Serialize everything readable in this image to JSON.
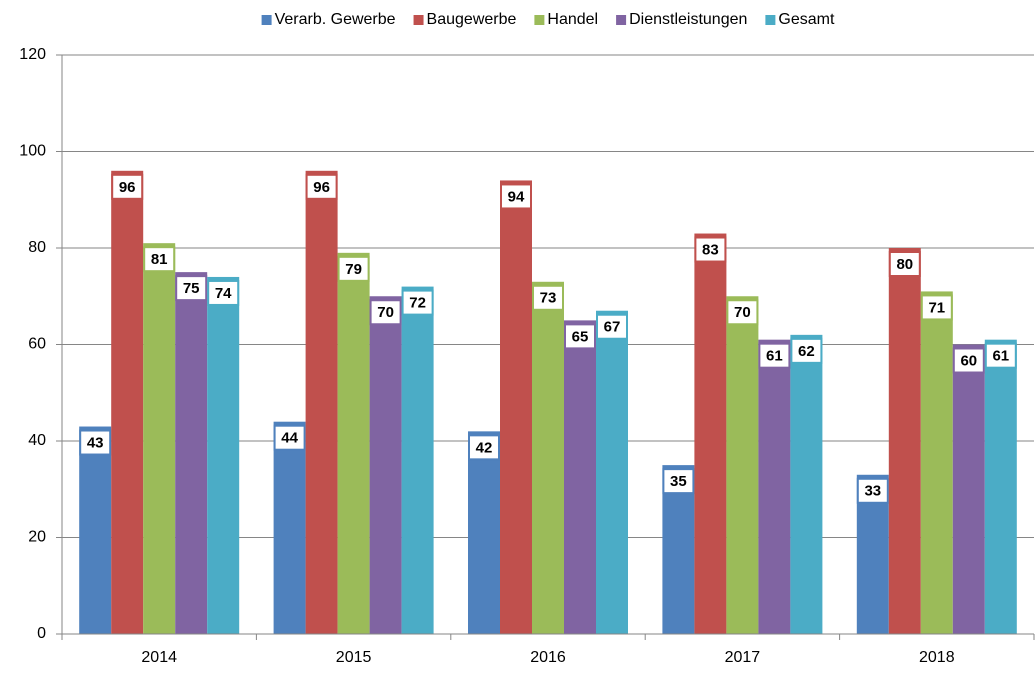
{
  "chart_data": {
    "type": "bar",
    "categories": [
      "2014",
      "2015",
      "2016",
      "2017",
      "2018"
    ],
    "series": [
      {
        "name": "Verarb. Gewerbe",
        "color": "#4f81bd",
        "values": [
          43,
          44,
          42,
          35,
          33
        ]
      },
      {
        "name": "Baugewerbe",
        "color": "#c0504d",
        "values": [
          96,
          96,
          94,
          83,
          80
        ]
      },
      {
        "name": "Handel",
        "color": "#9bbb59",
        "values": [
          81,
          79,
          73,
          70,
          71
        ]
      },
      {
        "name": "Dienstleistungen",
        "color": "#8064a2",
        "values": [
          75,
          70,
          65,
          61,
          60
        ]
      },
      {
        "name": "Gesamt",
        "color": "#4bacc6",
        "values": [
          74,
          72,
          67,
          62,
          61
        ]
      }
    ],
    "ylim": [
      0,
      120
    ],
    "yticks": [
      0,
      20,
      40,
      60,
      80,
      100,
      120
    ],
    "grid": true,
    "legend": "top"
  }
}
